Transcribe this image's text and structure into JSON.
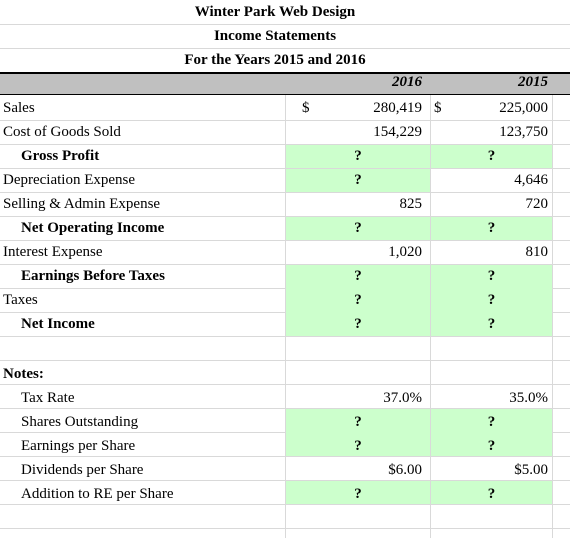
{
  "header": {
    "company": "Winter Park Web Design",
    "statement": "Income Statements",
    "period": "For the Years 2015 and 2016"
  },
  "columns": {
    "y2016": "2016",
    "y2015": "2015"
  },
  "rows": {
    "sales": {
      "label": "Sales",
      "cur1": "$",
      "v2016": "280,419",
      "cur2": "$",
      "v2015": "225,000"
    },
    "cogs": {
      "label": "Cost of Goods Sold",
      "v2016": "154,229",
      "v2015": "123,750"
    },
    "gross_profit": {
      "label": "Gross Profit",
      "v2016": "?",
      "v2015": "?"
    },
    "depreciation": {
      "label": "Depreciation Expense",
      "v2016": "?",
      "v2015": "4,646"
    },
    "selling_admin": {
      "label": "Selling & Admin Expense",
      "v2016": "825",
      "v2015": "720"
    },
    "net_operating_income": {
      "label": "Net Operating Income",
      "v2016": "?",
      "v2015": "?"
    },
    "interest": {
      "label": "Interest Expense",
      "v2016": "1,020",
      "v2015": "810"
    },
    "ebt": {
      "label": "Earnings Before Taxes",
      "v2016": "?",
      "v2015": "?"
    },
    "taxes": {
      "label": "Taxes",
      "v2016": "?",
      "v2015": "?"
    },
    "net_income": {
      "label": "Net Income",
      "v2016": "?",
      "v2015": "?"
    }
  },
  "notes": {
    "title": "Notes:",
    "tax_rate": {
      "label": "Tax Rate",
      "v2016": "37.0%",
      "v2015": "35.0%"
    },
    "shares": {
      "label": "Shares Outstanding",
      "v2016": "?",
      "v2015": "?"
    },
    "eps": {
      "label": "Earnings per Share",
      "v2016": "?",
      "v2015": "?"
    },
    "dps": {
      "label": "Dividends per Share",
      "v2016": "$6.00",
      "v2015": "$5.00"
    },
    "addition_re": {
      "label": "Addition to RE per Share",
      "v2016": "?",
      "v2015": "?"
    }
  },
  "colors": {
    "header_fill": "#c0c0c0",
    "input_fill": "#ccffcc",
    "gridline": "#d9d9d9"
  }
}
